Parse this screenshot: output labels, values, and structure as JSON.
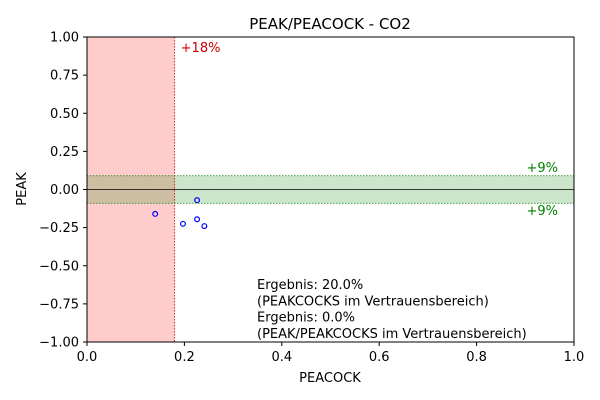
{
  "chart_data": {
    "type": "scatter",
    "title": "PEAK/PEACOCK - CO2",
    "xlabel": "PEACOCK",
    "ylabel": "PEAK",
    "xlim": [
      0.0,
      1.0
    ],
    "ylim": [
      -1.0,
      1.0
    ],
    "grid": false,
    "x_ticks": [
      "0.0",
      "0.2",
      "0.4",
      "0.6",
      "0.8",
      "1.0"
    ],
    "y_ticks": [
      "1.00",
      "0.75",
      "0.50",
      "0.25",
      "0.00",
      "−0.25",
      "−0.50",
      "−0.75",
      "−1.00"
    ],
    "points": [
      {
        "x": 0.14,
        "y": -0.16
      },
      {
        "x": 0.197,
        "y": -0.225
      },
      {
        "x": 0.226,
        "y": -0.07
      },
      {
        "x": 0.226,
        "y": -0.195
      },
      {
        "x": 0.241,
        "y": -0.24
      }
    ],
    "point_color": "#0000ff",
    "x_band": {
      "from": 0.0,
      "to": 0.18,
      "label": "+18%",
      "color": "#ff0000"
    },
    "y_band": {
      "from": -0.09,
      "to": 0.09,
      "label_top": "+9%",
      "label_bottom": "+9%",
      "color": "#008000"
    },
    "zero_line": 0.0,
    "annotations": [
      "Ergebnis: 20.0%",
      "(PEAKCOCKS im Vertrauensbereich)",
      "Ergebnis: 0.0%",
      "(PEAK/PEAKCOCKS im Vertrauensbereich)"
    ]
  }
}
